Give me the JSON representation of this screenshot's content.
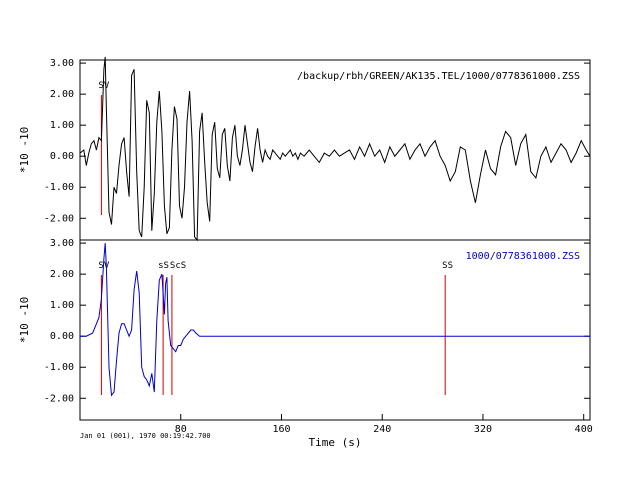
{
  "chart_data": [
    {
      "type": "line",
      "title": "/backup/rbh/GREEN/AK135.TEL/1000/0778361000.ZSS",
      "ylabel": "*10 -10",
      "xlim": [
        0,
        405
      ],
      "ylim": [
        -2.7,
        3.1
      ],
      "yticks": [
        "3.00",
        "2.00",
        "1.00",
        "0.00",
        "-1.00",
        "-2.00"
      ],
      "ytick_values": [
        3,
        2,
        1,
        0,
        -1,
        -2
      ],
      "line_color": "#000000",
      "marker_color": "#cc0000",
      "phases": [
        {
          "label": "SV",
          "x": 17
        }
      ],
      "series": [
        {
          "x": [
            0,
            3,
            5,
            7,
            9,
            11,
            13,
            15,
            17,
            19,
            20,
            21,
            23,
            25,
            27,
            29,
            31,
            33,
            35,
            37,
            39,
            41,
            43,
            45,
            47,
            49,
            51,
            53,
            55,
            57,
            59,
            61,
            63,
            65,
            67,
            69,
            71,
            73,
            75,
            77,
            79,
            81,
            83,
            85,
            87,
            89,
            91,
            93,
            95,
            97,
            99,
            101,
            103,
            105,
            107,
            109,
            111,
            113,
            115,
            117,
            119,
            121,
            123,
            125,
            127,
            129,
            131,
            133,
            135,
            137,
            139,
            141,
            143,
            145,
            147,
            149,
            151,
            153,
            155,
            157,
            159,
            161,
            163,
            165,
            167,
            169,
            171,
            173,
            175,
            178,
            182,
            186,
            190,
            194,
            198,
            202,
            206,
            210,
            214,
            218,
            222,
            226,
            230,
            234,
            238,
            242,
            246,
            250,
            254,
            258,
            262,
            266,
            270,
            274,
            278,
            282,
            286,
            290,
            294,
            298,
            302,
            306,
            310,
            314,
            318,
            322,
            326,
            330,
            334,
            338,
            342,
            346,
            350,
            354,
            358,
            362,
            366,
            370,
            374,
            378,
            382,
            386,
            390,
            394,
            398,
            402,
            405
          ],
          "y": [
            0.1,
            0.2,
            -0.3,
            0.1,
            0.4,
            0.5,
            0.2,
            0.6,
            0.5,
            2.8,
            3.2,
            1.5,
            -1.8,
            -2.2,
            -1.0,
            -1.2,
            -0.3,
            0.4,
            0.6,
            -0.5,
            -1.3,
            2.6,
            2.8,
            -0.5,
            -2.4,
            -2.6,
            -1.0,
            1.8,
            1.4,
            -2.4,
            -1.2,
            1.1,
            2.1,
            0.8,
            -1.6,
            -2.5,
            -2.3,
            0.2,
            1.6,
            1.2,
            -1.6,
            -2.0,
            -1.0,
            1.1,
            2.1,
            0.5,
            -2.6,
            -2.7,
            0.8,
            1.4,
            -0.2,
            -1.5,
            -2.1,
            0.7,
            1.1,
            -0.4,
            -0.7,
            0.7,
            0.9,
            -0.3,
            -0.8,
            0.6,
            1.0,
            0.0,
            -0.3,
            0.2,
            1.0,
            0.4,
            -0.2,
            -0.5,
            0.3,
            0.9,
            0.2,
            -0.2,
            0.2,
            0.0,
            -0.1,
            0.2,
            0.1,
            0.0,
            -0.1,
            0.1,
            0.0,
            0.1,
            0.2,
            0.0,
            0.1,
            -0.1,
            0.1,
            0.0,
            0.2,
            0.0,
            -0.2,
            0.1,
            0.0,
            0.2,
            0.0,
            0.1,
            0.2,
            -0.1,
            0.3,
            0.0,
            0.4,
            0.0,
            0.2,
            -0.2,
            0.3,
            0.0,
            0.2,
            0.4,
            -0.1,
            0.2,
            0.4,
            0.0,
            0.3,
            0.5,
            0.0,
            -0.3,
            -0.8,
            -0.5,
            0.3,
            0.2,
            -0.8,
            -1.5,
            -0.6,
            0.2,
            -0.4,
            -0.6,
            0.3,
            0.8,
            0.6,
            -0.3,
            0.4,
            0.7,
            -0.5,
            -0.7,
            0.0,
            0.3,
            -0.2,
            0.1,
            0.4,
            0.2,
            -0.2,
            0.1,
            0.5,
            0.2,
            0.0
          ]
        }
      ]
    },
    {
      "type": "line",
      "title": "1000/0778361000.ZSS",
      "ylabel": "*10 -10",
      "xlabel": "Time (s)",
      "xlim": [
        0,
        405
      ],
      "ylim": [
        -2.7,
        3.1
      ],
      "yticks": [
        "3.00",
        "2.00",
        "1.00",
        "0.00",
        "-1.00",
        "-2.00"
      ],
      "ytick_values": [
        3,
        2,
        1,
        0,
        -1,
        -2
      ],
      "xticks": [
        "80",
        "160",
        "240",
        "320",
        "400"
      ],
      "xtick_values": [
        80,
        160,
        240,
        320,
        400
      ],
      "line_color": "#0000cc",
      "marker_color": "#cc0000",
      "phases": [
        {
          "label": "SV",
          "x": 17
        },
        {
          "label": "sS",
          "x": 66
        },
        {
          "label": "ScS",
          "x": 73
        },
        {
          "label": "SS",
          "x": 290
        }
      ],
      "series": [
        {
          "x": [
            0,
            5,
            10,
            13,
            15,
            17,
            19,
            20,
            21,
            23,
            25,
            27,
            29,
            31,
            33,
            35,
            37,
            39,
            41,
            43,
            45,
            47,
            49,
            51,
            53,
            55,
            57,
            59,
            61,
            63,
            65,
            67,
            68,
            69,
            70,
            72,
            74,
            76,
            78,
            80,
            82,
            84,
            86,
            88,
            90,
            92,
            95,
            100,
            110,
            120,
            140,
            200,
            280,
            290,
            300,
            340,
            400,
            405
          ],
          "y": [
            0.0,
            0.0,
            0.1,
            0.4,
            0.6,
            1.2,
            2.5,
            3.0,
            2.2,
            -1.0,
            -1.9,
            -1.8,
            -0.8,
            0.1,
            0.4,
            0.4,
            0.2,
            0.0,
            0.2,
            1.5,
            2.1,
            1.4,
            -1.0,
            -1.3,
            -1.4,
            -1.6,
            -1.2,
            -1.8,
            0.5,
            1.8,
            2.0,
            0.7,
            1.7,
            1.9,
            0.5,
            -0.3,
            -0.4,
            -0.5,
            -0.3,
            -0.3,
            -0.1,
            0.0,
            0.1,
            0.2,
            0.2,
            0.1,
            0.0,
            0.0,
            0.0,
            0.0,
            0.0,
            0.0,
            0.0,
            0.0,
            0.0,
            0.0,
            0.0,
            0.0
          ]
        }
      ]
    }
  ],
  "footer": {
    "timestamp": "Jan 01 (001), 1970 00:19:42.700"
  }
}
